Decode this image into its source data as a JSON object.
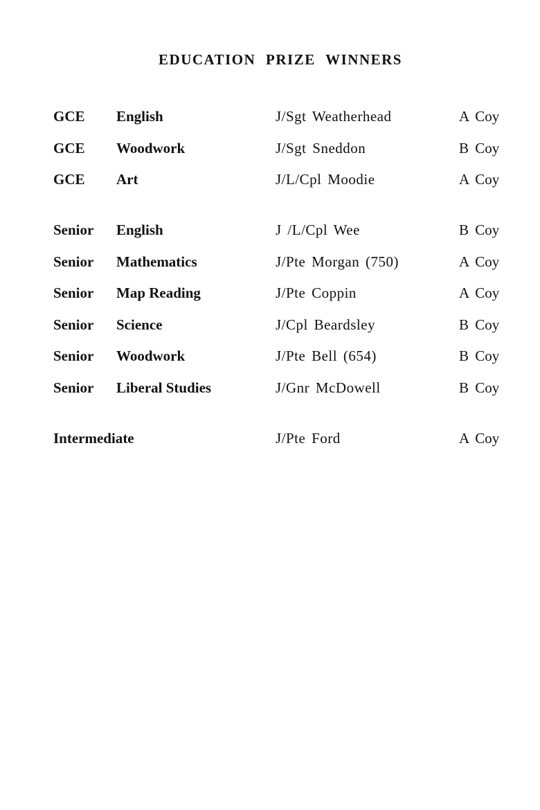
{
  "title": "EDUCATION PRIZE WINNERS",
  "rows": [
    {
      "level": "GCE",
      "subject": "English",
      "name": "J/Sgt Weatherhead",
      "company": "A Coy"
    },
    {
      "level": "GCE",
      "subject": "Woodwork",
      "name": "J/Sgt Sneddon",
      "company": "B Coy"
    },
    {
      "level": "GCE",
      "subject": "Art",
      "name": "J/L/Cpl Moodie",
      "company": "A Coy"
    },
    {
      "level": "Senior",
      "subject": "English",
      "name": "J /L/Cpl Wee",
      "company": "B Coy"
    },
    {
      "level": "Senior",
      "subject": "Mathematics",
      "name": "J/Pte Morgan (750)",
      "company": "A Coy"
    },
    {
      "level": "Senior",
      "subject": "Map Reading",
      "name": "J/Pte Coppin",
      "company": "A Coy"
    },
    {
      "level": "Senior",
      "subject": "Science",
      "name": "J/Cpl Beardsley",
      "company": "B Coy"
    },
    {
      "level": "Senior",
      "subject": "Woodwork",
      "name": "J/Pte Bell (654)",
      "company": "B Coy"
    },
    {
      "level": "Senior",
      "subject": "Liberal Studies",
      "name": "J/Gnr McDowell",
      "company": "B Coy"
    },
    {
      "level": "Intermediate",
      "subject": "",
      "name": "J/Pte Ford",
      "company": "A Coy"
    }
  ]
}
